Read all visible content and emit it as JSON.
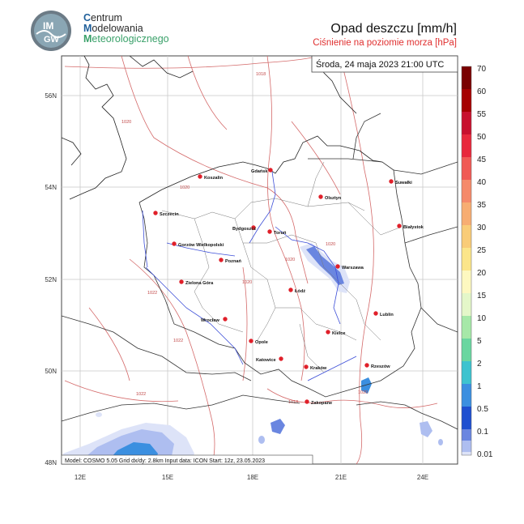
{
  "header": {
    "org_line1_cap": "C",
    "org_line1_rest": "entrum",
    "org_line2_cap": "M",
    "org_line2_rest": "odelowania",
    "org_line3_cap": "M",
    "org_line3_rest": "eteorologicznego",
    "logo_text_top": "IM",
    "logo_text_bottom": "GW",
    "title": "Opad deszczu [mm/h]",
    "subtitle": "Ciśnienie na poziomie morza [hPa]"
  },
  "map": {
    "timestamp": "Środa, 24 maja 2023 21:00 UTC",
    "footer": "Model: COSMO 5.05  Grid dx/dy: 2.8km  Input data: ICON  Start: 12z, 23.05.2023",
    "lon_labels": [
      "12E",
      "15E",
      "18E",
      "21E",
      "24E"
    ],
    "lat_labels": [
      "56N",
      "54N",
      "52N",
      "50N",
      "48N"
    ],
    "cities": [
      "Gdańsk",
      "Koszalin",
      "Szczecin",
      "Olsztyn",
      "Suwałki",
      "Białystok",
      "Bydgoszcz",
      "Toruń",
      "Gorzów Wielkopolski",
      "Poznań",
      "Warszawa",
      "Zielona Góra",
      "Łódź",
      "Lublin",
      "Wrocław",
      "Opole",
      "Kielce",
      "Katowice",
      "Kraków",
      "Rzeszów",
      "Zakopane"
    ],
    "isobar_labels": [
      "1018",
      "1020",
      "1020",
      "1020",
      "1020",
      "1020",
      "1022",
      "1022",
      "1022",
      "1018",
      "1020"
    ]
  },
  "legend": {
    "unit": "mm/h",
    "levels": [
      "70",
      "60",
      "55",
      "50",
      "45",
      "40",
      "35",
      "30",
      "25",
      "20",
      "15",
      "10",
      "5",
      "2",
      "1",
      "0.5",
      "0.1",
      "0.01"
    ],
    "colors": [
      "#7a0000",
      "#a50000",
      "#c8102e",
      "#e8283c",
      "#f05a55",
      "#f58a6a",
      "#f7ad72",
      "#f9cc78",
      "#fbe58a",
      "#fdf8c0",
      "#e4f7c9",
      "#a6e8a8",
      "#6ad6a0",
      "#3dc3cf",
      "#3b8fe0",
      "#1e4fd0",
      "#6a86e0",
      "#aebef0",
      "#dde3f8"
    ]
  }
}
